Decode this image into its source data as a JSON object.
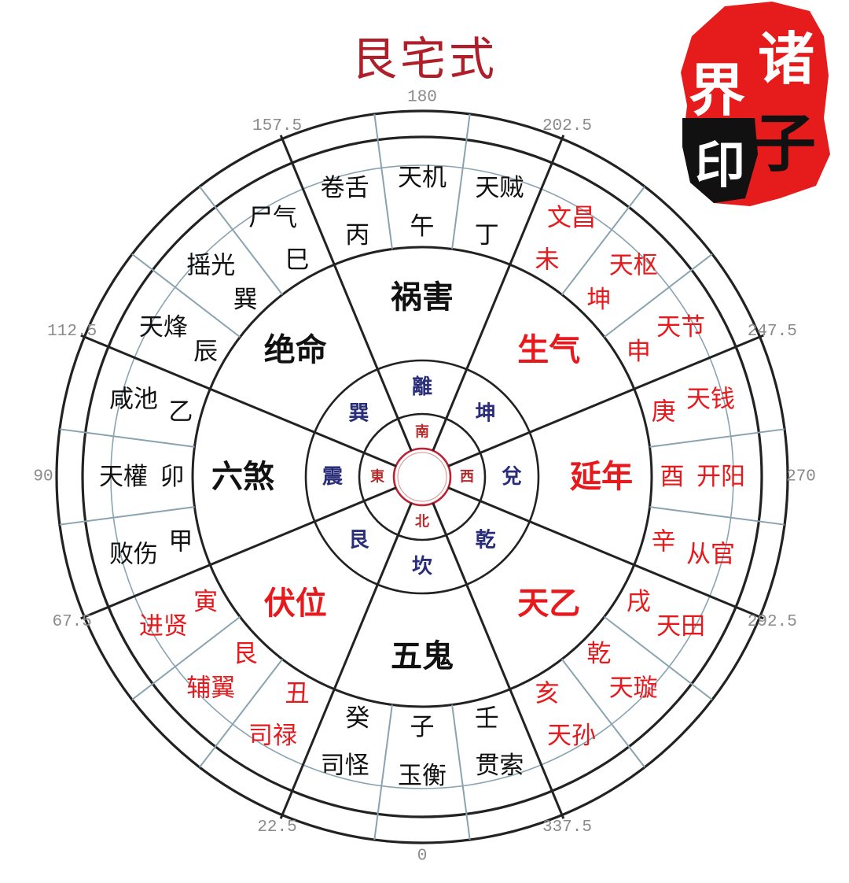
{
  "title": "艮宅式",
  "seal": {
    "chars": [
      "诸",
      "子",
      "界",
      "印"
    ]
  },
  "colors": {
    "red": "#e8191c",
    "black": "#111111",
    "navy": "#2a2e7a",
    "title": "#b01e2a",
    "grey": "#8a8a8a"
  },
  "degrees": [
    {
      "label": "157.5",
      "angle": 157.5
    },
    {
      "label": "180",
      "angle": 180
    },
    {
      "label": "202.5",
      "angle": 202.5
    },
    {
      "label": "247.5",
      "angle": 247.5
    },
    {
      "label": "270",
      "angle": 270
    },
    {
      "label": "292.5",
      "angle": 292.5
    },
    {
      "label": "337.5",
      "angle": 337.5
    },
    {
      "label": "0",
      "angle": 0
    },
    {
      "label": "22.5",
      "angle": 22.5
    },
    {
      "label": "67.5",
      "angle": 67.5
    },
    {
      "label": "90",
      "angle": 90
    },
    {
      "label": "112.5",
      "angle": 112.5
    }
  ],
  "center_directions": [
    {
      "label": "南",
      "angle": 180
    },
    {
      "label": "西",
      "angle": 270
    },
    {
      "label": "北",
      "angle": 0
    },
    {
      "label": "東",
      "angle": 90
    }
  ],
  "trigrams": [
    {
      "label": "離",
      "angle": 180
    },
    {
      "label": "坤",
      "angle": 225
    },
    {
      "label": "兌",
      "angle": 270
    },
    {
      "label": "乾",
      "angle": 315
    },
    {
      "label": "坎",
      "angle": 0
    },
    {
      "label": "艮",
      "angle": 45
    },
    {
      "label": "震",
      "angle": 90
    },
    {
      "label": "巽",
      "angle": 135
    }
  ],
  "mansions": [
    {
      "label": "祸害",
      "angle": 180,
      "color": "black"
    },
    {
      "label": "生气",
      "angle": 225,
      "color": "red"
    },
    {
      "label": "延年",
      "angle": 270,
      "color": "red"
    },
    {
      "label": "天乙",
      "angle": 315,
      "color": "red"
    },
    {
      "label": "五鬼",
      "angle": 0,
      "color": "black"
    },
    {
      "label": "伏位",
      "angle": 45,
      "color": "red"
    },
    {
      "label": "六煞",
      "angle": 90,
      "color": "black"
    },
    {
      "label": "绝命",
      "angle": 135,
      "color": "black"
    }
  ],
  "stars": [
    {
      "label": "天机",
      "angle": 180,
      "color": "black"
    },
    {
      "label": "天贼",
      "angle": 195,
      "color": "black"
    },
    {
      "label": "文昌",
      "angle": 210,
      "color": "red"
    },
    {
      "label": "天枢",
      "angle": 225,
      "color": "red"
    },
    {
      "label": "天节",
      "angle": 240,
      "color": "red"
    },
    {
      "label": "天钱",
      "angle": 255,
      "color": "red"
    },
    {
      "label": "开阳",
      "angle": 270,
      "color": "red"
    },
    {
      "label": "从官",
      "angle": 285,
      "color": "red"
    },
    {
      "label": "天田",
      "angle": 300,
      "color": "red"
    },
    {
      "label": "天璇",
      "angle": 315,
      "color": "red"
    },
    {
      "label": "天孙",
      "angle": 330,
      "color": "red"
    },
    {
      "label": "贯索",
      "angle": 345,
      "color": "black"
    },
    {
      "label": "玉衡",
      "angle": 0,
      "color": "black"
    },
    {
      "label": "司怪",
      "angle": 15,
      "color": "black"
    },
    {
      "label": "司禄",
      "angle": 30,
      "color": "red"
    },
    {
      "label": "辅翼",
      "angle": 45,
      "color": "red"
    },
    {
      "label": "进贤",
      "angle": 60,
      "color": "red"
    },
    {
      "label": "败伤",
      "angle": 75,
      "color": "black"
    },
    {
      "label": "天權",
      "angle": 90,
      "color": "black"
    },
    {
      "label": "咸池",
      "angle": 105,
      "color": "black"
    },
    {
      "label": "天烽",
      "angle": 120,
      "color": "black"
    },
    {
      "label": "摇光",
      "angle": 135,
      "color": "black"
    },
    {
      "label": "尸气",
      "angle": 150,
      "color": "black"
    },
    {
      "label": "卷舌",
      "angle": 165,
      "color": "black"
    }
  ],
  "mountains": [
    {
      "label": "午",
      "angle": 180,
      "color": "black"
    },
    {
      "label": "丁",
      "angle": 195,
      "color": "black"
    },
    {
      "label": "未",
      "angle": 210,
      "color": "red"
    },
    {
      "label": "坤",
      "angle": 225,
      "color": "red"
    },
    {
      "label": "申",
      "angle": 240,
      "color": "red"
    },
    {
      "label": "庚",
      "angle": 255,
      "color": "red"
    },
    {
      "label": "酉",
      "angle": 270,
      "color": "red"
    },
    {
      "label": "辛",
      "angle": 285,
      "color": "red"
    },
    {
      "label": "戌",
      "angle": 300,
      "color": "red"
    },
    {
      "label": "乾",
      "angle": 315,
      "color": "red"
    },
    {
      "label": "亥",
      "angle": 330,
      "color": "red"
    },
    {
      "label": "壬",
      "angle": 345,
      "color": "black"
    },
    {
      "label": "子",
      "angle": 0,
      "color": "black"
    },
    {
      "label": "癸",
      "angle": 15,
      "color": "black"
    },
    {
      "label": "丑",
      "angle": 30,
      "color": "red"
    },
    {
      "label": "艮",
      "angle": 45,
      "color": "red"
    },
    {
      "label": "寅",
      "angle": 60,
      "color": "red"
    },
    {
      "label": "甲",
      "angle": 75,
      "color": "black"
    },
    {
      "label": "卯",
      "angle": 90,
      "color": "black"
    },
    {
      "label": "乙",
      "angle": 105,
      "color": "black"
    },
    {
      "label": "辰",
      "angle": 120,
      "color": "black"
    },
    {
      "label": "巽",
      "angle": 135,
      "color": "black"
    },
    {
      "label": "巳",
      "angle": 150,
      "color": "black"
    },
    {
      "label": "丙",
      "angle": 165,
      "color": "black"
    }
  ]
}
